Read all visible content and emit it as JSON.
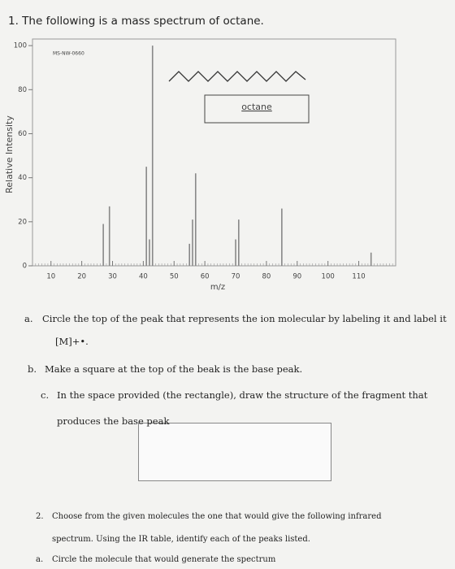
{
  "document": {
    "title": "1. The following is a mass spectrum of octane.",
    "items": [
      {
        "marker": "a.",
        "lines": [
          "Circle the top of the peak that represents the ion molecular by labeling it and label it",
          "[M]+•."
        ]
      },
      {
        "marker": "b.",
        "lines": [
          "Make a square at the top of the beak is the base peak."
        ]
      },
      {
        "marker": "c.",
        "lines": [
          "In the space provided (the rectangle), draw the structure of the fragment that",
          "produces the base peak"
        ]
      },
      {
        "marker": "2.",
        "lines": [
          "Choose from the given molecules the one that would give the following infrared",
          "spectrum. Using the IR table, identify each of the peaks listed."
        ]
      },
      {
        "marker": "a.",
        "lines": [
          "Circle the molecule that would generate the spectrum"
        ]
      }
    ]
  },
  "chart_data": {
    "type": "stick",
    "annotation": "MS-NW-0660",
    "legend_label": "octane",
    "ylabel": "Relative Intensity",
    "xlabel": "m/z",
    "x": [
      27,
      29,
      41,
      42,
      43,
      55,
      56,
      57,
      70,
      71,
      85,
      114
    ],
    "values": [
      19,
      27,
      45,
      12,
      100,
      10,
      21,
      42,
      12,
      21,
      26,
      6
    ],
    "color": "#888888",
    "xlim": [
      4,
      122
    ],
    "ylim": [
      0,
      103
    ],
    "xticks": [
      10,
      20,
      30,
      40,
      50,
      60,
      70,
      80,
      90,
      100,
      110
    ],
    "yticks": [
      0,
      20,
      40,
      60,
      80,
      100
    ]
  }
}
